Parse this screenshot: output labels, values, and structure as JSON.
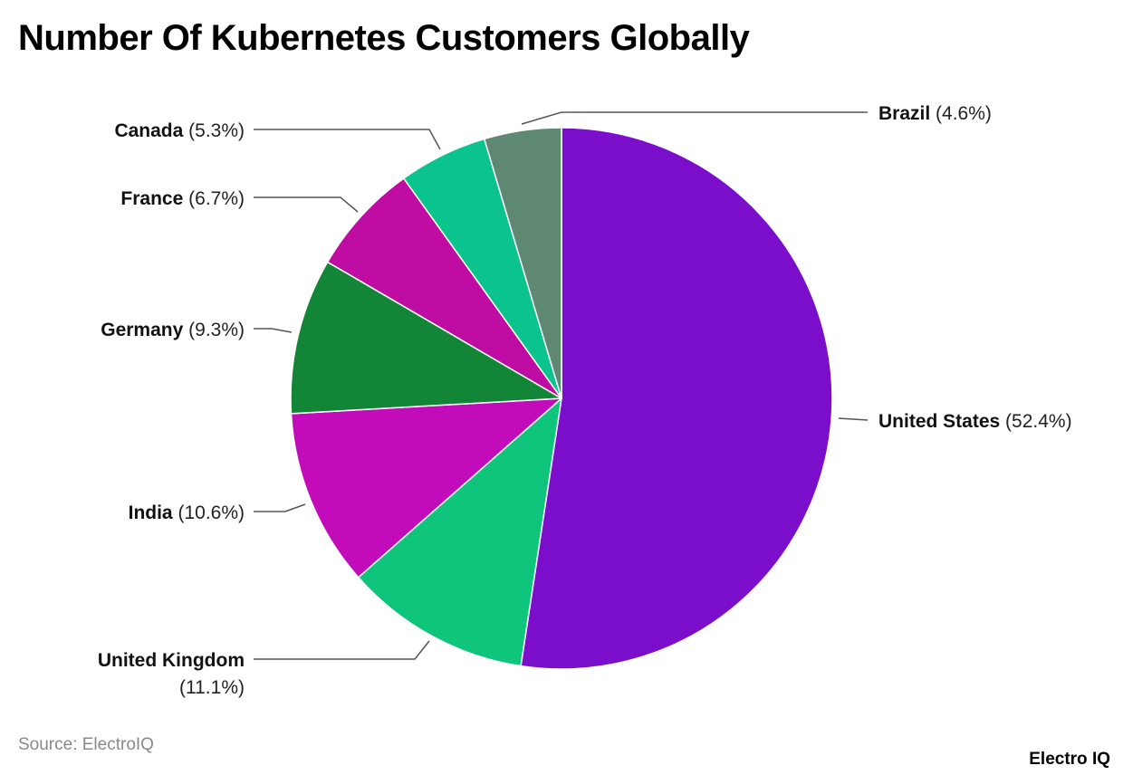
{
  "title": "Number Of Kubernetes Customers Globally",
  "source": "Source: ElectroIQ",
  "brand": "Electro IQ",
  "chart_data": {
    "type": "pie",
    "title": "Number Of Kubernetes Customers Globally",
    "start": "12 o'clock",
    "direction": "clockwise",
    "slices": [
      {
        "label": "United States",
        "value": 52.4,
        "value_text": "(52.4%)",
        "color": "#7b0ecb"
      },
      {
        "label": "United Kingdom",
        "value": 11.1,
        "value_text": "(11.1%)",
        "color": "#0fc57b"
      },
      {
        "label": "India",
        "value": 10.6,
        "value_text": "(10.6%)",
        "color": "#c20cba"
      },
      {
        "label": "Germany",
        "value": 9.3,
        "value_text": "(9.3%)",
        "color": "#128636"
      },
      {
        "label": "France",
        "value": 6.7,
        "value_text": "(6.7%)",
        "color": "#bf0ca3"
      },
      {
        "label": "Canada",
        "value": 5.3,
        "value_text": "(5.3%)",
        "color": "#0bc38c"
      },
      {
        "label": "Brazil",
        "value": 4.6,
        "value_text": "(4.6%)",
        "color": "#5e8872"
      }
    ]
  }
}
